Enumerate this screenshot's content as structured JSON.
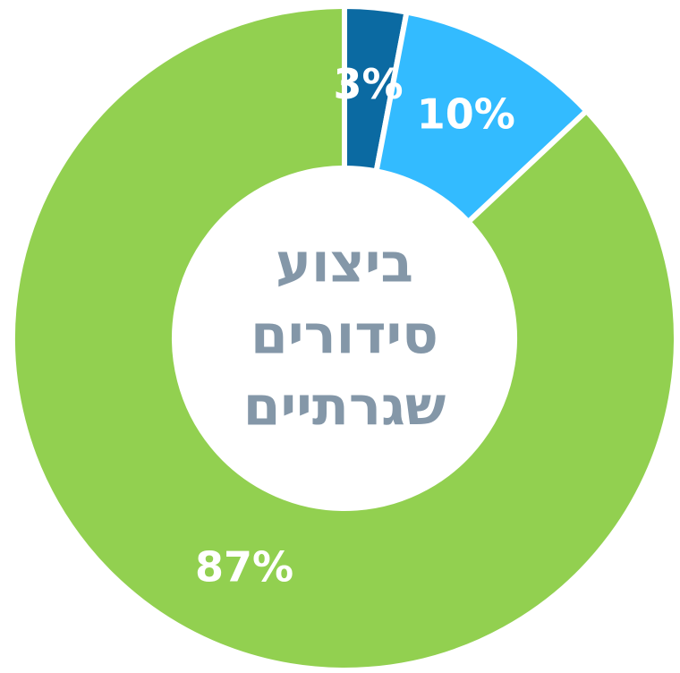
{
  "chart_data": {
    "type": "donut",
    "center_text": [
      "ביצוע",
      "סידורים",
      "שגרתיים"
    ],
    "values": [
      3,
      10,
      87
    ],
    "value_labels": [
      "3%",
      "10%",
      "87%"
    ],
    "colors": [
      "#0b6aa2",
      "#33bbff",
      "#92d050"
    ]
  }
}
